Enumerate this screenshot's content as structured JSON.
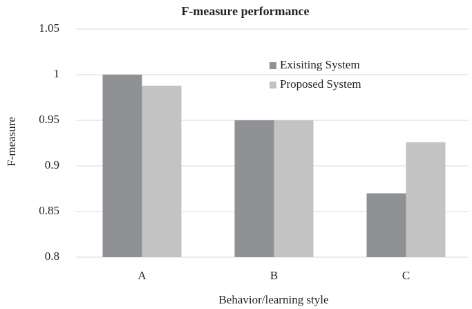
{
  "chart_data": {
    "type": "bar",
    "title": "F-measure performance",
    "x_label": "Behavior/learning style",
    "y_label": "F-measure",
    "categories": [
      "A",
      "B",
      "C"
    ],
    "series": [
      {
        "name": "Exisiting System",
        "color": "#909194",
        "values": [
          1,
          0.95,
          0.87
        ]
      },
      {
        "name": "Proposed System",
        "color": "#c3c3c3",
        "values": [
          0.988,
          0.95,
          0.926
        ]
      }
    ],
    "ylim": [
      0.8,
      1.05
    ],
    "yticks": [
      0.8,
      0.85,
      0.9,
      0.95,
      1,
      1.05
    ],
    "grid": true,
    "legend": "upper right"
  }
}
